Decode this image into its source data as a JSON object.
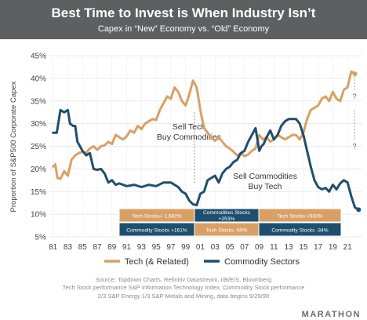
{
  "header": {
    "title": "Best Time to Invest is When Industry Isn’t",
    "subtitle": "Capex in “New” Economy vs. “Old” Economy"
  },
  "chart_data": {
    "type": "line",
    "ylabel": "Proportion of S&P500 Corporate Capex",
    "ylim": [
      5,
      45
    ],
    "yticks": [
      "5%",
      "10%",
      "15%",
      "20%",
      "25%",
      "30%",
      "35%",
      "40%",
      "45%"
    ],
    "xlim": [
      1980.5,
      2023
    ],
    "xticks": [
      "81",
      "83",
      "85",
      "87",
      "89",
      "91",
      "93",
      "95",
      "97",
      "99",
      "01",
      "03",
      "05",
      "07",
      "09",
      "11",
      "13",
      "15",
      "17",
      "19",
      "21"
    ],
    "grid": true,
    "legend_position": "bottom",
    "series": [
      {
        "name": "Tech (& Related)",
        "color": "#d9a066",
        "points": [
          [
            1981.0,
            20.5
          ],
          [
            1981.3,
            21.0
          ],
          [
            1981.6,
            18.0
          ],
          [
            1982.0,
            17.8
          ],
          [
            1982.5,
            19.5
          ],
          [
            1983.0,
            18.5
          ],
          [
            1983.5,
            22.0
          ],
          [
            1984.0,
            23.0
          ],
          [
            1984.5,
            23.5
          ],
          [
            1985.0,
            23.8
          ],
          [
            1985.5,
            23.6
          ],
          [
            1986.0,
            24.5
          ],
          [
            1986.5,
            25.0
          ],
          [
            1987.0,
            24.2
          ],
          [
            1987.5,
            25.0
          ],
          [
            1988.0,
            25.2
          ],
          [
            1988.5,
            26.0
          ],
          [
            1989.0,
            25.5
          ],
          [
            1989.5,
            27.5
          ],
          [
            1990.0,
            27.0
          ],
          [
            1990.5,
            26.5
          ],
          [
            1991.0,
            27.2
          ],
          [
            1991.5,
            28.5
          ],
          [
            1992.0,
            28.0
          ],
          [
            1992.5,
            29.5
          ],
          [
            1993.0,
            28.8
          ],
          [
            1993.5,
            30.0
          ],
          [
            1994.0,
            30.5
          ],
          [
            1994.5,
            31.0
          ],
          [
            1995.0,
            30.8
          ],
          [
            1995.5,
            33.0
          ],
          [
            1996.0,
            34.5
          ],
          [
            1996.5,
            36.0
          ],
          [
            1997.0,
            35.5
          ],
          [
            1997.5,
            38.0
          ],
          [
            1998.0,
            37.0
          ],
          [
            1998.5,
            35.0
          ],
          [
            1999.0,
            34.0
          ],
          [
            1999.5,
            36.5
          ],
          [
            2000.0,
            39.5
          ],
          [
            2000.5,
            38.0
          ],
          [
            2001.0,
            33.0
          ],
          [
            2001.5,
            29.0
          ],
          [
            2002.0,
            28.0
          ],
          [
            2002.5,
            27.0
          ],
          [
            2003.0,
            26.2
          ],
          [
            2003.5,
            27.0
          ],
          [
            2004.0,
            26.0
          ],
          [
            2004.5,
            25.0
          ],
          [
            2005.0,
            24.5
          ],
          [
            2005.5,
            23.8
          ],
          [
            2006.0,
            23.0
          ],
          [
            2006.5,
            23.5
          ],
          [
            2007.0,
            22.8
          ],
          [
            2007.5,
            23.2
          ],
          [
            2008.0,
            24.0
          ],
          [
            2008.5,
            24.5
          ],
          [
            2009.0,
            27.5
          ],
          [
            2009.5,
            26.5
          ],
          [
            2010.0,
            27.0
          ],
          [
            2010.5,
            26.0
          ],
          [
            2011.0,
            26.5
          ],
          [
            2011.5,
            27.5
          ],
          [
            2012.0,
            27.0
          ],
          [
            2012.5,
            26.5
          ],
          [
            2013.0,
            27.0
          ],
          [
            2013.5,
            27.5
          ],
          [
            2014.0,
            27.5
          ],
          [
            2014.5,
            26.5
          ],
          [
            2015.0,
            28.0
          ],
          [
            2015.5,
            31.0
          ],
          [
            2016.0,
            33.0
          ],
          [
            2016.5,
            33.5
          ],
          [
            2017.0,
            34.0
          ],
          [
            2017.5,
            35.5
          ],
          [
            2018.0,
            36.0
          ],
          [
            2018.5,
            35.0
          ],
          [
            2019.0,
            37.0
          ],
          [
            2019.5,
            35.5
          ],
          [
            2020.0,
            35.0
          ],
          [
            2020.5,
            37.5
          ],
          [
            2021.0,
            38.0
          ],
          [
            2021.5,
            41.5
          ],
          [
            2022.0,
            41.0
          ]
        ]
      },
      {
        "name": "Commodity Sectors",
        "color": "#1e4f6e",
        "points": [
          [
            1981.0,
            28.0
          ],
          [
            1981.5,
            28.0
          ],
          [
            1982.0,
            33.0
          ],
          [
            1982.5,
            32.5
          ],
          [
            1983.0,
            33.0
          ],
          [
            1983.3,
            30.0
          ],
          [
            1983.7,
            29.5
          ],
          [
            1984.0,
            29.5
          ],
          [
            1984.3,
            26.0
          ],
          [
            1985.0,
            24.0
          ],
          [
            1985.5,
            23.0
          ],
          [
            1986.0,
            23.5
          ],
          [
            1986.5,
            20.0
          ],
          [
            1987.0,
            19.8
          ],
          [
            1987.5,
            20.0
          ],
          [
            1988.0,
            19.0
          ],
          [
            1988.5,
            17.0
          ],
          [
            1989.0,
            17.5
          ],
          [
            1989.5,
            16.5
          ],
          [
            1990.0,
            16.8
          ],
          [
            1991.0,
            16.2
          ],
          [
            1992.0,
            16.5
          ],
          [
            1993.0,
            16.0
          ],
          [
            1994.0,
            16.5
          ],
          [
            1995.0,
            16.2
          ],
          [
            1996.0,
            17.0
          ],
          [
            1997.0,
            17.0
          ],
          [
            1998.0,
            16.0
          ],
          [
            1998.5,
            15.0
          ],
          [
            1999.0,
            14.5
          ],
          [
            1999.5,
            13.0
          ],
          [
            2000.0,
            12.2
          ],
          [
            2000.5,
            12.0
          ],
          [
            2001.0,
            14.5
          ],
          [
            2001.5,
            15.0
          ],
          [
            2002.0,
            17.5
          ],
          [
            2002.5,
            18.0
          ],
          [
            2003.0,
            18.5
          ],
          [
            2003.5,
            17.0
          ],
          [
            2004.0,
            19.0
          ],
          [
            2004.5,
            20.0
          ],
          [
            2005.0,
            20.5
          ],
          [
            2005.5,
            21.5
          ],
          [
            2006.0,
            22.0
          ],
          [
            2006.5,
            23.5
          ],
          [
            2007.0,
            24.0
          ],
          [
            2007.5,
            26.0
          ],
          [
            2008.0,
            27.5
          ],
          [
            2008.5,
            29.0
          ],
          [
            2009.0,
            24.0
          ],
          [
            2009.3,
            25.0
          ],
          [
            2009.6,
            25.5
          ],
          [
            2010.0,
            27.0
          ],
          [
            2010.5,
            28.5
          ],
          [
            2011.0,
            26.5
          ],
          [
            2011.5,
            27.5
          ],
          [
            2012.0,
            29.5
          ],
          [
            2012.5,
            30.5
          ],
          [
            2013.0,
            31.0
          ],
          [
            2013.5,
            31.0
          ],
          [
            2014.0,
            31.0
          ],
          [
            2014.5,
            30.0
          ],
          [
            2015.0,
            27.5
          ],
          [
            2015.5,
            24.0
          ],
          [
            2016.0,
            20.5
          ],
          [
            2016.5,
            17.5
          ],
          [
            2017.0,
            16.0
          ],
          [
            2017.5,
            15.5
          ],
          [
            2018.0,
            15.8
          ],
          [
            2018.5,
            15.0
          ],
          [
            2019.0,
            16.5
          ],
          [
            2019.5,
            15.5
          ],
          [
            2020.0,
            16.8
          ],
          [
            2020.5,
            17.5
          ],
          [
            2021.0,
            17.0
          ],
          [
            2021.5,
            14.0
          ],
          [
            2022.0,
            11.5
          ],
          [
            2022.5,
            11.0
          ]
        ]
      }
    ],
    "annotations": [
      {
        "lines": [
          "Sell Tech",
          "Buy Commodities"
        ]
      },
      {
        "lines": [
          "Sell Commodities",
          "Buy Tech"
        ]
      }
    ],
    "period_table": {
      "rows": [
        [
          "Tech Stocks+ 1,582%",
          "Commodities Stocks +253%",
          "Tech Stocks +582%"
        ],
        [
          "Commodity Stocks +161%",
          "Tech Stocks -59%",
          "Commodity Stocks -34%"
        ]
      ],
      "colors": [
        [
          "#d9a066",
          "#1e4f6e",
          "#d9a066"
        ],
        [
          "#1e4f6e",
          "#d9a066",
          "#1e4f6e"
        ]
      ]
    }
  },
  "footer": {
    "source_lines": [
      "Source: Topdown Charts, Refinitiv Datastream, I/B/E/S, Bloomberg",
      "Tech Stock performance S&P Information Technology Index, Commodity Stock performance",
      "2/3 S&P Energy 1/3 S&P Metals and Mining, data begins 9/29/90"
    ],
    "brand": "MARATHON"
  }
}
